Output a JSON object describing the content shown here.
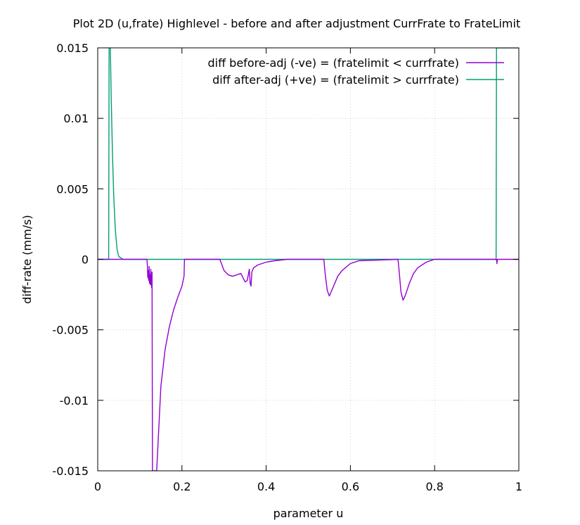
{
  "chart_data": {
    "type": "line",
    "title": "Plot 2D (u,frate) Highlevel - before and after adjustment CurrFrate to FrateLimit",
    "xlabel": "parameter u",
    "ylabel": "diff-rate (mm/s)",
    "xlim": [
      0,
      1
    ],
    "ylim": [
      -0.015,
      0.015
    ],
    "xticks": [
      0,
      0.2,
      0.4,
      0.6,
      0.8,
      1
    ],
    "xtick_labels": [
      "0",
      "0.2",
      "0.4",
      "0.6",
      "0.8",
      "1"
    ],
    "yticks": [
      -0.015,
      -0.01,
      -0.005,
      0,
      0.005,
      0.01,
      0.015
    ],
    "ytick_labels": [
      "-0.015",
      "-0.01",
      "-0.005",
      "0",
      "0.005",
      "0.01",
      "0.015"
    ],
    "grid": true,
    "legend_position": "top-right",
    "series": [
      {
        "name": "diff before-adj (-ve) = (fratelimit < currfrate)",
        "color": "#9400d3",
        "x": [
          0,
          0.117,
          0.118,
          0.119,
          0.12,
          0.121,
          0.122,
          0.123,
          0.124,
          0.125,
          0.126,
          0.127,
          0.128,
          0.129,
          0.13,
          0.131,
          0.135,
          0.14,
          0.15,
          0.16,
          0.17,
          0.18,
          0.19,
          0.2,
          0.205,
          0.206,
          0.29,
          0.3,
          0.31,
          0.32,
          0.33,
          0.34,
          0.345,
          0.35,
          0.355,
          0.36,
          0.362,
          0.364,
          0.366,
          0.37,
          0.38,
          0.4,
          0.42,
          0.45,
          0.537,
          0.54,
          0.545,
          0.55,
          0.56,
          0.57,
          0.58,
          0.6,
          0.62,
          0.713,
          0.716,
          0.72,
          0.725,
          0.73,
          0.74,
          0.75,
          0.76,
          0.78,
          0.8,
          0.947,
          0.948,
          0.949,
          1
        ],
        "y": [
          0,
          0,
          -0.0005,
          -0.0013,
          -0.0008,
          -0.0015,
          -0.0005,
          -0.0017,
          -0.0011,
          -0.0018,
          -0.0007,
          -0.0015,
          -0.002,
          -0.0009,
          -0.015,
          -0.015,
          -0.015,
          -0.015,
          -0.009,
          -0.0064,
          -0.0048,
          -0.0036,
          -0.0027,
          -0.0019,
          -0.0012,
          0,
          0,
          -0.0008,
          -0.0011,
          -0.0012,
          -0.0011,
          -0.001,
          -0.0013,
          -0.0016,
          -0.0015,
          -0.0007,
          -0.0017,
          -0.0019,
          -0.0009,
          -0.0006,
          -0.0004,
          -0.0002,
          -0.0001,
          0,
          0,
          -0.001,
          -0.0022,
          -0.0026,
          -0.0019,
          -0.0012,
          -0.0008,
          -0.0003,
          -0.0001,
          0,
          -0.0009,
          -0.0023,
          -0.0029,
          -0.0026,
          -0.0017,
          -0.001,
          -0.0006,
          -0.0002,
          0,
          0,
          -0.0003,
          0,
          0
        ]
      },
      {
        "name": "diff after-adj (+ve) = (fratelimit > currfrate)",
        "color": "#009e73",
        "x": [
          0,
          0.026,
          0.027,
          0.028,
          0.03,
          0.032,
          0.035,
          0.038,
          0.042,
          0.046,
          0.05,
          0.06,
          0.946,
          0.947,
          0.948,
          1
        ],
        "y": [
          0,
          0,
          0.015,
          0.015,
          0.015,
          0.0115,
          0.0075,
          0.0045,
          0.002,
          0.0007,
          0.0002,
          0,
          0,
          0.015,
          0.015,
          0.015
        ]
      }
    ]
  }
}
